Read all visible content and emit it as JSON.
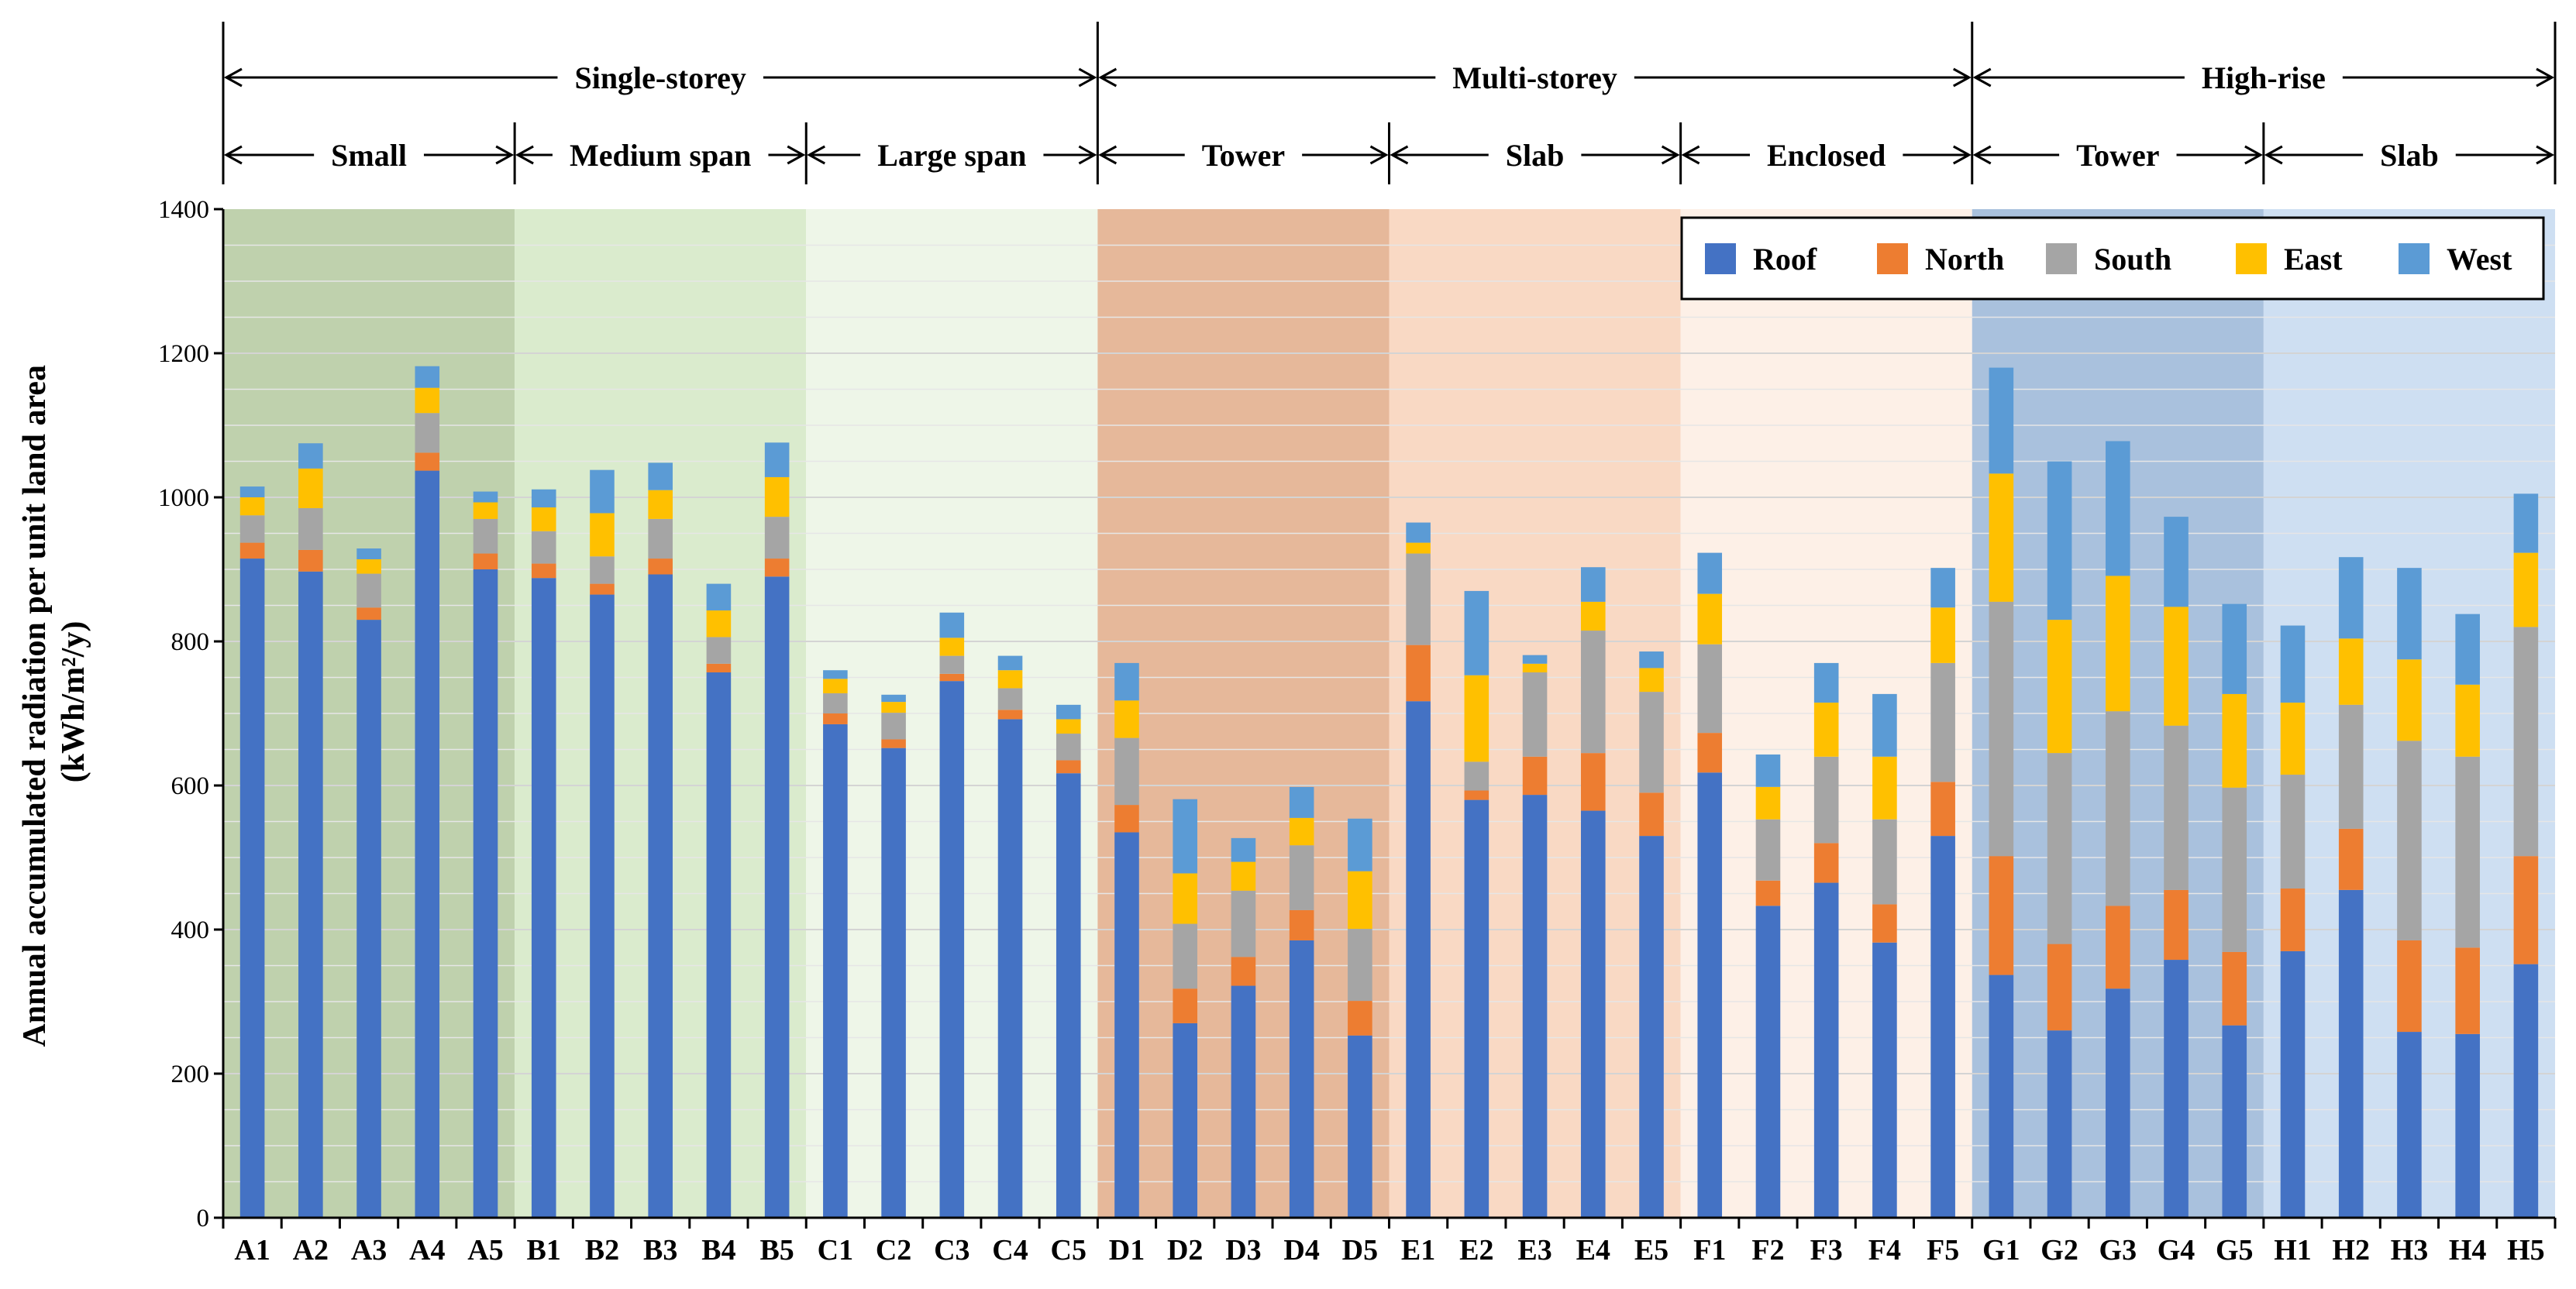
{
  "chart_data": {
    "type": "bar",
    "stacked": true,
    "ylabel": "Annual accumulated radiation per unit land area",
    "ylabel_unit": "(kWh/m²/y)",
    "ylim": [
      0,
      1400
    ],
    "yticks": [
      0,
      200,
      400,
      600,
      800,
      1000,
      1200,
      1400
    ],
    "grid": true,
    "legend_position": "top-right",
    "categories": [
      "A1",
      "A2",
      "A3",
      "A4",
      "A5",
      "B1",
      "B2",
      "B3",
      "B4",
      "B5",
      "C1",
      "C2",
      "C3",
      "C4",
      "C5",
      "D1",
      "D2",
      "D3",
      "D4",
      "D5",
      "E1",
      "E2",
      "E3",
      "E4",
      "E5",
      "F1",
      "F2",
      "F3",
      "F4",
      "F5",
      "G1",
      "G2",
      "G3",
      "G4",
      "G5",
      "H1",
      "H2",
      "H3",
      "H4",
      "H5"
    ],
    "series": [
      {
        "name": "Roof",
        "color": "#4472c4",
        "values": [
          915,
          897,
          830,
          1037,
          900,
          888,
          865,
          893,
          757,
          890,
          685,
          652,
          745,
          692,
          617,
          535,
          270,
          322,
          385,
          253,
          717,
          580,
          587,
          565,
          530,
          618,
          433,
          465,
          382,
          530,
          337,
          260,
          318,
          358,
          267,
          370,
          455,
          258,
          255,
          352
        ]
      },
      {
        "name": "North",
        "color": "#ed7d31",
        "values": [
          22,
          30,
          17,
          25,
          22,
          20,
          15,
          22,
          12,
          25,
          15,
          12,
          10,
          13,
          18,
          38,
          48,
          40,
          42,
          48,
          78,
          13,
          53,
          80,
          60,
          55,
          35,
          55,
          53,
          75,
          165,
          120,
          115,
          97,
          102,
          87,
          85,
          127,
          120,
          150
        ]
      },
      {
        "name": "South",
        "color": "#a5a5a5",
        "values": [
          38,
          58,
          47,
          55,
          48,
          45,
          38,
          55,
          37,
          58,
          28,
          37,
          25,
          30,
          37,
          93,
          90,
          92,
          90,
          100,
          127,
          40,
          117,
          170,
          140,
          123,
          85,
          120,
          118,
          165,
          353,
          265,
          270,
          228,
          228,
          158,
          172,
          277,
          265,
          318
        ]
      },
      {
        "name": "East",
        "color": "#ffc000",
        "values": [
          25,
          55,
          20,
          35,
          23,
          33,
          60,
          40,
          37,
          55,
          20,
          15,
          25,
          25,
          20,
          52,
          70,
          40,
          38,
          80,
          15,
          120,
          12,
          40,
          33,
          70,
          45,
          75,
          87,
          77,
          178,
          185,
          188,
          165,
          130,
          100,
          92,
          113,
          100,
          103
        ]
      },
      {
        "name": "West",
        "color": "#5b9bd5",
        "values": [
          15,
          35,
          15,
          30,
          15,
          25,
          60,
          38,
          37,
          48,
          12,
          10,
          35,
          20,
          20,
          52,
          103,
          33,
          43,
          73,
          28,
          117,
          12,
          48,
          23,
          57,
          45,
          55,
          87,
          55,
          147,
          220,
          187,
          125,
          125,
          107,
          113,
          127,
          98,
          82
        ]
      }
    ],
    "group_labels": [
      {
        "label": "Single-storey",
        "start": 0,
        "end": 14
      },
      {
        "label": "Multi-storey",
        "start": 15,
        "end": 29
      },
      {
        "label": "High-rise",
        "start": 30,
        "end": 39
      }
    ],
    "subgroup_labels": [
      {
        "label": "Small",
        "start": 0,
        "end": 4,
        "bg": "#bfd1ad"
      },
      {
        "label": "Medium span",
        "start": 5,
        "end": 9,
        "bg": "#daebcd"
      },
      {
        "label": "Large span",
        "start": 10,
        "end": 14,
        "bg": "#eef6e8"
      },
      {
        "label": "Tower",
        "start": 15,
        "end": 19,
        "bg": "#e6b89a"
      },
      {
        "label": "Slab",
        "start": 20,
        "end": 24,
        "bg": "#f9d9c4"
      },
      {
        "label": "Enclosed",
        "start": 25,
        "end": 29,
        "bg": "#fdf0e7"
      },
      {
        "label": "Tower",
        "start": 30,
        "end": 34,
        "bg": "#a9c1dd"
      },
      {
        "label": "Slab",
        "start": 35,
        "end": 39,
        "bg": "#cedff2"
      }
    ]
  }
}
